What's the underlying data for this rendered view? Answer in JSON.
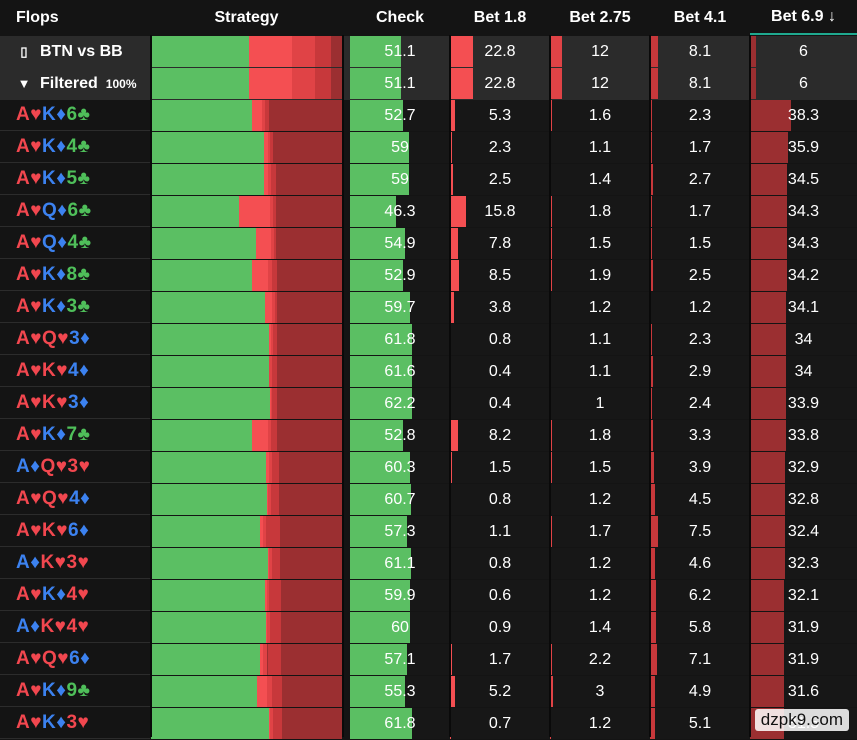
{
  "header": {
    "flops": "Flops",
    "strategy": "Strategy",
    "check": "Check",
    "bet18": "Bet 1.8",
    "bet275": "Bet 2.75",
    "bet41": "Bet 4.1",
    "bet69": "Bet 6.9 ↓"
  },
  "summary": [
    {
      "icon": "bookmark-icon",
      "label": "BTN vs BB",
      "pct": "",
      "check": "51.1",
      "b1": "22.8",
      "b2": "12",
      "b3": "8.1",
      "b4": "6"
    },
    {
      "icon": "filter-icon",
      "label": "Filtered",
      "pct": "100%",
      "check": "51.1",
      "b1": "22.8",
      "b2": "12",
      "b3": "8.1",
      "b4": "6"
    }
  ],
  "rows": [
    {
      "cards": [
        [
          "A",
          "♥",
          "r"
        ],
        [
          "K",
          "♦",
          "b"
        ],
        [
          "6",
          "♣",
          "g"
        ]
      ],
      "check": "52.7",
      "b1": "5.3",
      "b2": "1.6",
      "b3": "2.3",
      "b4": "38.3"
    },
    {
      "cards": [
        [
          "A",
          "♥",
          "r"
        ],
        [
          "K",
          "♦",
          "b"
        ],
        [
          "4",
          "♣",
          "g"
        ]
      ],
      "check": "59",
      "b1": "2.3",
      "b2": "1.1",
      "b3": "1.7",
      "b4": "35.9"
    },
    {
      "cards": [
        [
          "A",
          "♥",
          "r"
        ],
        [
          "K",
          "♦",
          "b"
        ],
        [
          "5",
          "♣",
          "g"
        ]
      ],
      "check": "59",
      "b1": "2.5",
      "b2": "1.4",
      "b3": "2.7",
      "b4": "34.5"
    },
    {
      "cards": [
        [
          "A",
          "♥",
          "r"
        ],
        [
          "Q",
          "♦",
          "b"
        ],
        [
          "6",
          "♣",
          "g"
        ]
      ],
      "check": "46.3",
      "b1": "15.8",
      "b2": "1.8",
      "b3": "1.7",
      "b4": "34.3"
    },
    {
      "cards": [
        [
          "A",
          "♥",
          "r"
        ],
        [
          "Q",
          "♦",
          "b"
        ],
        [
          "4",
          "♣",
          "g"
        ]
      ],
      "check": "54.9",
      "b1": "7.8",
      "b2": "1.5",
      "b3": "1.5",
      "b4": "34.3"
    },
    {
      "cards": [
        [
          "A",
          "♥",
          "r"
        ],
        [
          "K",
          "♦",
          "b"
        ],
        [
          "8",
          "♣",
          "g"
        ]
      ],
      "check": "52.9",
      "b1": "8.5",
      "b2": "1.9",
      "b3": "2.5",
      "b4": "34.2"
    },
    {
      "cards": [
        [
          "A",
          "♥",
          "r"
        ],
        [
          "K",
          "♦",
          "b"
        ],
        [
          "3",
          "♣",
          "g"
        ]
      ],
      "check": "59.7",
      "b1": "3.8",
      "b2": "1.2",
      "b3": "1.2",
      "b4": "34.1"
    },
    {
      "cards": [
        [
          "A",
          "♥",
          "r"
        ],
        [
          "Q",
          "♥",
          "r"
        ],
        [
          "3",
          "♦",
          "b"
        ]
      ],
      "check": "61.8",
      "b1": "0.8",
      "b2": "1.1",
      "b3": "2.3",
      "b4": "34"
    },
    {
      "cards": [
        [
          "A",
          "♥",
          "r"
        ],
        [
          "K",
          "♥",
          "r"
        ],
        [
          "4",
          "♦",
          "b"
        ]
      ],
      "check": "61.6",
      "b1": "0.4",
      "b2": "1.1",
      "b3": "2.9",
      "b4": "34"
    },
    {
      "cards": [
        [
          "A",
          "♥",
          "r"
        ],
        [
          "K",
          "♥",
          "r"
        ],
        [
          "3",
          "♦",
          "b"
        ]
      ],
      "check": "62.2",
      "b1": "0.4",
      "b2": "1",
      "b3": "2.4",
      "b4": "33.9"
    },
    {
      "cards": [
        [
          "A",
          "♥",
          "r"
        ],
        [
          "K",
          "♦",
          "b"
        ],
        [
          "7",
          "♣",
          "g"
        ]
      ],
      "check": "52.8",
      "b1": "8.2",
      "b2": "1.8",
      "b3": "3.3",
      "b4": "33.8"
    },
    {
      "cards": [
        [
          "A",
          "♦",
          "b"
        ],
        [
          "Q",
          "♥",
          "r"
        ],
        [
          "3",
          "♥",
          "r"
        ]
      ],
      "check": "60.3",
      "b1": "1.5",
      "b2": "1.5",
      "b3": "3.9",
      "b4": "32.9"
    },
    {
      "cards": [
        [
          "A",
          "♥",
          "r"
        ],
        [
          "Q",
          "♥",
          "r"
        ],
        [
          "4",
          "♦",
          "b"
        ]
      ],
      "check": "60.7",
      "b1": "0.8",
      "b2": "1.2",
      "b3": "4.5",
      "b4": "32.8"
    },
    {
      "cards": [
        [
          "A",
          "♥",
          "r"
        ],
        [
          "K",
          "♥",
          "r"
        ],
        [
          "6",
          "♦",
          "b"
        ]
      ],
      "check": "57.3",
      "b1": "1.1",
      "b2": "1.7",
      "b3": "7.5",
      "b4": "32.4"
    },
    {
      "cards": [
        [
          "A",
          "♦",
          "b"
        ],
        [
          "K",
          "♥",
          "r"
        ],
        [
          "3",
          "♥",
          "r"
        ]
      ],
      "check": "61.1",
      "b1": "0.8",
      "b2": "1.2",
      "b3": "4.6",
      "b4": "32.3"
    },
    {
      "cards": [
        [
          "A",
          "♥",
          "r"
        ],
        [
          "K",
          "♦",
          "b"
        ],
        [
          "4",
          "♥",
          "r"
        ]
      ],
      "check": "59.9",
      "b1": "0.6",
      "b2": "1.2",
      "b3": "6.2",
      "b4": "32.1"
    },
    {
      "cards": [
        [
          "A",
          "♦",
          "b"
        ],
        [
          "K",
          "♥",
          "r"
        ],
        [
          "4",
          "♥",
          "r"
        ]
      ],
      "check": "60",
      "b1": "0.9",
      "b2": "1.4",
      "b3": "5.8",
      "b4": "31.9"
    },
    {
      "cards": [
        [
          "A",
          "♥",
          "r"
        ],
        [
          "Q",
          "♥",
          "r"
        ],
        [
          "6",
          "♦",
          "b"
        ]
      ],
      "check": "57.1",
      "b1": "1.7",
      "b2": "2.2",
      "b3": "7.1",
      "b4": "31.9"
    },
    {
      "cards": [
        [
          "A",
          "♥",
          "r"
        ],
        [
          "K",
          "♦",
          "b"
        ],
        [
          "9",
          "♣",
          "g"
        ]
      ],
      "check": "55.3",
      "b1": "5.2",
      "b2": "3",
      "b3": "4.9",
      "b4": "31.6"
    },
    {
      "cards": [
        [
          "A",
          "♥",
          "r"
        ],
        [
          "K",
          "♦",
          "b"
        ],
        [
          "3",
          "♥",
          "r"
        ]
      ],
      "check": "61.8",
      "b1": "0.7",
      "b2": "1.2",
      "b3": "5.1",
      "b4": "31.5"
    }
  ],
  "colors": {
    "check": "#5bbf63",
    "bet18": "#f44f52",
    "bet275": "#e04346",
    "bet41": "#c7383b",
    "bet69": "#9b2f31"
  },
  "watermark": "dzpk9.com"
}
